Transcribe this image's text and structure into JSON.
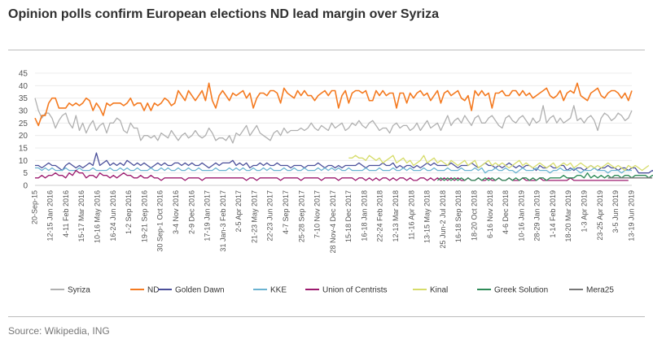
{
  "title": "Opinion polls confirm European elections ND lead margin over Syriza",
  "source": "Source: Wikipedia, ING",
  "chart_data": {
    "type": "line",
    "title": "Opinion polls confirm European elections ND lead margin over Syriza",
    "xlabel": "",
    "ylabel": "",
    "ylim": [
      0,
      45
    ],
    "yticks": [
      0,
      5,
      10,
      15,
      20,
      25,
      30,
      35,
      40,
      45
    ],
    "grid": true,
    "legend_position": "bottom",
    "x_tick_labels": [
      "20-Sep-15",
      "12-15 Jan 2016",
      "4-11 Feb 2016",
      "15-17 Mar 2016",
      "10-16 May 2016",
      "16-24 Jun 2016",
      "1-2 Sep 2016",
      "19-21 Sep 2016",
      "30 Sep-1 Oct 2016",
      "3-4 Nov 2016",
      "2-9 Dec 2016",
      "17-19 Jan 2017",
      "31 Jan-3 Feb 2017",
      "2-5 Apr 2017",
      "21-23 May 2017",
      "22-23 Jun 2017",
      "4-7 Sep 2017",
      "25-28 Sep 2017",
      "7-10 Nov 2017",
      "28 Nov-4 Dec 2017",
      "15-18 Dec 2017",
      "16-18 Jan 2018",
      "22-24 Feb 2018",
      "12-13 Mar 2018",
      "11-16 Apr 2018",
      "13-15 May 2018",
      "25 Jun-2 Jul 2018",
      "16-18 Sep 2018",
      "18-20 Oct 2018",
      "6-16 Nov 2018",
      "4-6 Dec 2018",
      "10-16 Jan 2019",
      "28-29 Jan 2019",
      "1-14 Feb 2019",
      "18-20 Mar 2019",
      "1-3 Apr 2019",
      "23-25 Apr 2019",
      "3-5 Jun 2019",
      "13-19 Jun 2019"
    ],
    "series": [
      {
        "name": "Syriza",
        "color": "#b0b0b0",
        "start": 0,
        "values": [
          35,
          30,
          27,
          29,
          29,
          27,
          23,
          26,
          28,
          29,
          25,
          23,
          28,
          22,
          25,
          21,
          24,
          26,
          22,
          24,
          25,
          21,
          25,
          25,
          27,
          26,
          22,
          21,
          25,
          23,
          23,
          18,
          20,
          20,
          19,
          20,
          18,
          21,
          20,
          19,
          22,
          20,
          18,
          20,
          21,
          19,
          20,
          22,
          20,
          19,
          20,
          23,
          21,
          18,
          19,
          19,
          18,
          20,
          17,
          21,
          20,
          22,
          24,
          20,
          22,
          24,
          21,
          20,
          19,
          18,
          21,
          22,
          20,
          23,
          21,
          22,
          22,
          22,
          23,
          22,
          23,
          25,
          23,
          22,
          24,
          23,
          22,
          25,
          23,
          24,
          25,
          22,
          23,
          25,
          24,
          26,
          24,
          23,
          25,
          26,
          24,
          22,
          23,
          23,
          21,
          24,
          25,
          23,
          24,
          24,
          22,
          23,
          25,
          22,
          24,
          26,
          23,
          24,
          25,
          22,
          25,
          28,
          24,
          26,
          27,
          25,
          28,
          26,
          24,
          27,
          28,
          25,
          25,
          27,
          28,
          26,
          24,
          23,
          27,
          28,
          26,
          25,
          27,
          28,
          26,
          24,
          27,
          25,
          26,
          32,
          25,
          27,
          28,
          25,
          27,
          25,
          26,
          27,
          32,
          26,
          27,
          25,
          27,
          28,
          26,
          22,
          27,
          29,
          28,
          26,
          27,
          29,
          28,
          26,
          27,
          30
        ]
      },
      {
        "name": "ND",
        "color": "#f47a20",
        "start": 0,
        "values": [
          27,
          24,
          28,
          28,
          33,
          35,
          35,
          31,
          31,
          31,
          33,
          32,
          33,
          32,
          33,
          35,
          34,
          30,
          33,
          31,
          28,
          33,
          32,
          33,
          33,
          33,
          32,
          33,
          35,
          32,
          33,
          33,
          30,
          33,
          30,
          33,
          32,
          33,
          35,
          34,
          32,
          33,
          38,
          36,
          34,
          38,
          36,
          34,
          36,
          38,
          34,
          41,
          34,
          31,
          36,
          38,
          36,
          34,
          37,
          36,
          37,
          38,
          35,
          37,
          31,
          35,
          37,
          37,
          36,
          38,
          38,
          37,
          33,
          39,
          37,
          36,
          35,
          38,
          36,
          38,
          36,
          36,
          34,
          36,
          37,
          38,
          36,
          38,
          38,
          31,
          36,
          38,
          33,
          37,
          38,
          38,
          37,
          38,
          34,
          34,
          38,
          36,
          38,
          36,
          37,
          37,
          31,
          37,
          37,
          33,
          37,
          35,
          37,
          38,
          36,
          37,
          34,
          36,
          38,
          33,
          37,
          38,
          36,
          37,
          38,
          35,
          34,
          36,
          30,
          38,
          36,
          38,
          36,
          37,
          31,
          37,
          37,
          38,
          36,
          36,
          38,
          38,
          36,
          38,
          36,
          37,
          35,
          36,
          37,
          38,
          39,
          36,
          35,
          36,
          38,
          34,
          37,
          38,
          37,
          41,
          36,
          35,
          34,
          37,
          38,
          39,
          36,
          35,
          37,
          38,
          38,
          37,
          35,
          37,
          34,
          38
        ]
      },
      {
        "name": "Golden Dawn",
        "color": "#4a4f9a",
        "start": 0,
        "values": [
          8,
          8,
          7,
          8,
          9,
          8,
          8,
          7,
          6,
          8,
          9,
          8,
          7,
          8,
          7,
          8,
          9,
          8,
          13,
          8,
          9,
          10,
          8,
          9,
          8,
          9,
          8,
          10,
          9,
          8,
          9,
          8,
          9,
          8,
          7,
          8,
          9,
          8,
          9,
          8,
          8,
          9,
          9,
          8,
          9,
          8,
          9,
          8,
          8,
          9,
          8,
          7,
          8,
          9,
          8,
          9,
          9,
          9,
          10,
          8,
          9,
          8,
          9,
          7,
          8,
          8,
          9,
          8,
          9,
          8,
          8,
          9,
          8,
          8,
          8,
          7,
          8,
          8,
          8,
          7,
          8,
          8,
          8,
          9,
          8,
          7,
          8,
          8,
          7,
          8,
          7,
          8,
          8,
          8,
          8,
          9,
          8,
          7,
          8,
          8,
          8,
          8,
          9,
          8,
          8,
          9,
          7,
          8,
          7,
          8,
          8,
          7,
          8,
          7,
          8,
          9,
          8,
          9,
          8,
          8,
          8,
          8,
          9,
          8,
          7,
          8,
          8,
          8,
          9,
          8,
          7,
          8,
          9,
          8,
          8,
          7,
          8,
          7,
          8,
          9,
          8,
          7,
          8,
          7,
          8,
          8,
          7,
          6,
          8,
          7,
          7,
          8,
          7,
          7,
          8,
          8,
          6,
          7,
          6,
          7,
          7,
          6,
          7,
          8,
          7,
          6,
          7,
          7,
          8,
          7,
          7,
          6,
          7,
          7,
          6,
          7,
          7,
          5,
          5,
          5,
          5,
          6,
          5,
          6,
          5,
          6
        ]
      },
      {
        "name": "KKE",
        "color": "#6bb3d1",
        "start": 0,
        "values": [
          7,
          7,
          6,
          7,
          6,
          7,
          6,
          6,
          6,
          7,
          6,
          6,
          6,
          7,
          6,
          6,
          6,
          7,
          6,
          6,
          6,
          6,
          7,
          6,
          6,
          7,
          6,
          7,
          6,
          6,
          7,
          6,
          6,
          6,
          7,
          6,
          6,
          7,
          6,
          7,
          6,
          6,
          7,
          6,
          6,
          7,
          6,
          6,
          7,
          6,
          6,
          6,
          6,
          7,
          6,
          6,
          6,
          7,
          6,
          7,
          6,
          7,
          6,
          6,
          7,
          6,
          6,
          7,
          6,
          7,
          6,
          6,
          6,
          7,
          6,
          6,
          7,
          6,
          6,
          7,
          6,
          6,
          6,
          7,
          6,
          7,
          6,
          7,
          6,
          7,
          6,
          6,
          7,
          6,
          6,
          6,
          6,
          7,
          6,
          6,
          6,
          7,
          6,
          6,
          6,
          7,
          6,
          6,
          7,
          6,
          7,
          6,
          6,
          6,
          7,
          6,
          6,
          7,
          6,
          6,
          6,
          7,
          6,
          6,
          6,
          7,
          6,
          6,
          6,
          7,
          6,
          7,
          5,
          6,
          6,
          7,
          6,
          6,
          7,
          6,
          6,
          5,
          6,
          7,
          6,
          6,
          6,
          7,
          6,
          6,
          6,
          5,
          6,
          6,
          7,
          6,
          6,
          6,
          7,
          6,
          5,
          6,
          6,
          6,
          7,
          6,
          6,
          6,
          5,
          6,
          6,
          6,
          5,
          6,
          6,
          6
        ]
      },
      {
        "name": "Union of Centrists",
        "color": "#9c1a6e",
        "start": 0,
        "values": [
          3,
          3,
          4,
          3,
          4,
          4,
          5,
          4,
          4,
          3,
          5,
          4,
          6,
          5,
          5,
          3,
          4,
          4,
          3,
          5,
          4,
          4,
          3,
          4,
          3,
          4,
          5,
          4,
          4,
          3,
          3,
          4,
          3,
          3,
          4,
          3,
          3,
          2,
          3,
          3,
          3,
          3,
          3,
          3,
          2,
          3,
          3,
          3,
          3,
          2,
          3,
          3,
          3,
          3,
          3,
          3,
          3,
          3,
          3,
          3,
          3,
          3,
          2,
          3,
          3,
          2,
          3,
          3,
          3,
          3,
          3,
          3,
          2,
          3,
          3,
          3,
          3,
          3,
          2,
          3,
          3,
          3,
          3,
          3,
          2,
          3,
          3,
          3,
          3,
          2,
          3,
          3,
          3,
          3,
          2,
          3,
          3,
          2,
          3,
          2,
          3,
          2,
          3,
          3,
          2,
          3,
          2,
          3,
          3,
          2,
          3,
          2,
          2,
          3,
          3,
          2,
          3,
          2,
          3,
          2,
          3,
          2,
          3,
          2,
          3,
          2,
          2,
          3,
          2,
          2,
          3,
          2,
          2,
          3,
          2,
          2,
          3,
          2,
          2,
          3,
          2,
          2,
          2,
          3,
          2,
          2,
          2,
          2,
          3,
          2,
          2,
          2,
          2,
          2,
          2,
          2,
          2,
          3,
          2,
          2,
          2,
          2,
          2,
          2,
          2,
          2,
          2,
          2,
          2,
          2,
          2,
          2,
          2,
          2,
          2
        ]
      },
      {
        "name": "Kinal",
        "color": "#d6dc6a",
        "start": 92,
        "values": [
          11,
          11,
          12,
          11,
          11,
          10,
          12,
          11,
          10,
          11,
          9,
          10,
          11,
          12,
          9,
          10,
          11,
          9,
          10,
          8,
          9,
          10,
          12,
          9,
          10,
          11,
          9,
          10,
          9,
          8,
          10,
          9,
          8,
          9,
          10,
          8,
          9,
          10,
          7,
          8,
          9,
          10,
          8,
          9,
          8,
          9,
          8,
          7,
          8,
          9,
          10,
          8,
          9,
          8,
          7,
          8,
          9,
          8,
          7,
          8,
          9,
          7,
          8,
          9,
          8,
          9,
          7,
          8,
          9,
          8,
          7,
          8,
          7,
          8,
          7,
          8,
          9,
          8,
          7,
          8,
          7,
          6,
          8,
          7,
          8,
          7,
          6,
          7,
          8
        ]
      },
      {
        "name": "Greek Solution",
        "color": "#2e8b57",
        "start": 118,
        "values": [
          2,
          3,
          2,
          3,
          2,
          3,
          2,
          3,
          2,
          3,
          2,
          2,
          3,
          2,
          3,
          2,
          3,
          2,
          3,
          2,
          2,
          3,
          2,
          3,
          2,
          3,
          3,
          2,
          3,
          2,
          3,
          3,
          2,
          3,
          3,
          3,
          3,
          4,
          3,
          3,
          3,
          4,
          4,
          3,
          5,
          3,
          4,
          3,
          4,
          3,
          4,
          3,
          4,
          4,
          3,
          4,
          4,
          3,
          4,
          4,
          4,
          4,
          3,
          4,
          4
        ]
      },
      {
        "name": "Mera25",
        "color": "#777777",
        "start": 168,
        "values": [
          3,
          3,
          3,
          3,
          3,
          3,
          3,
          3,
          3,
          3,
          3,
          3,
          3,
          3
        ]
      }
    ]
  }
}
